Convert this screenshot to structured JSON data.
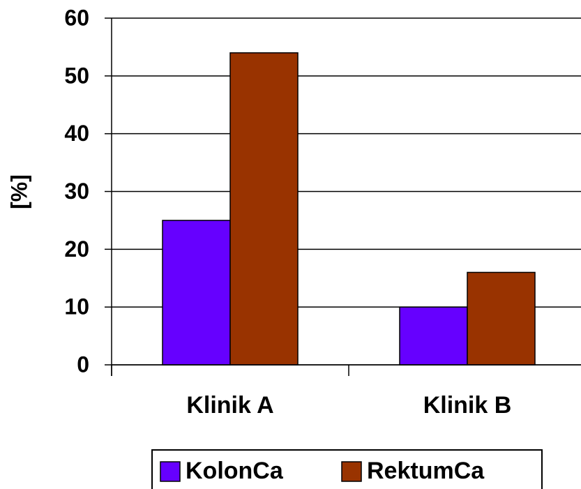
{
  "chart_data": {
    "type": "bar",
    "y_label": "[%]",
    "categories": [
      "Klinik A",
      "Klinik B"
    ],
    "series": [
      {
        "name": "KolonCa",
        "color": "#6600ff",
        "values": [
          25,
          10
        ]
      },
      {
        "name": "RektumCa",
        "color": "#993300",
        "values": [
          54,
          16
        ]
      }
    ],
    "ylim": [
      0,
      60
    ],
    "yticks": [
      0,
      10,
      20,
      30,
      40,
      50,
      60
    ],
    "grid": true
  }
}
